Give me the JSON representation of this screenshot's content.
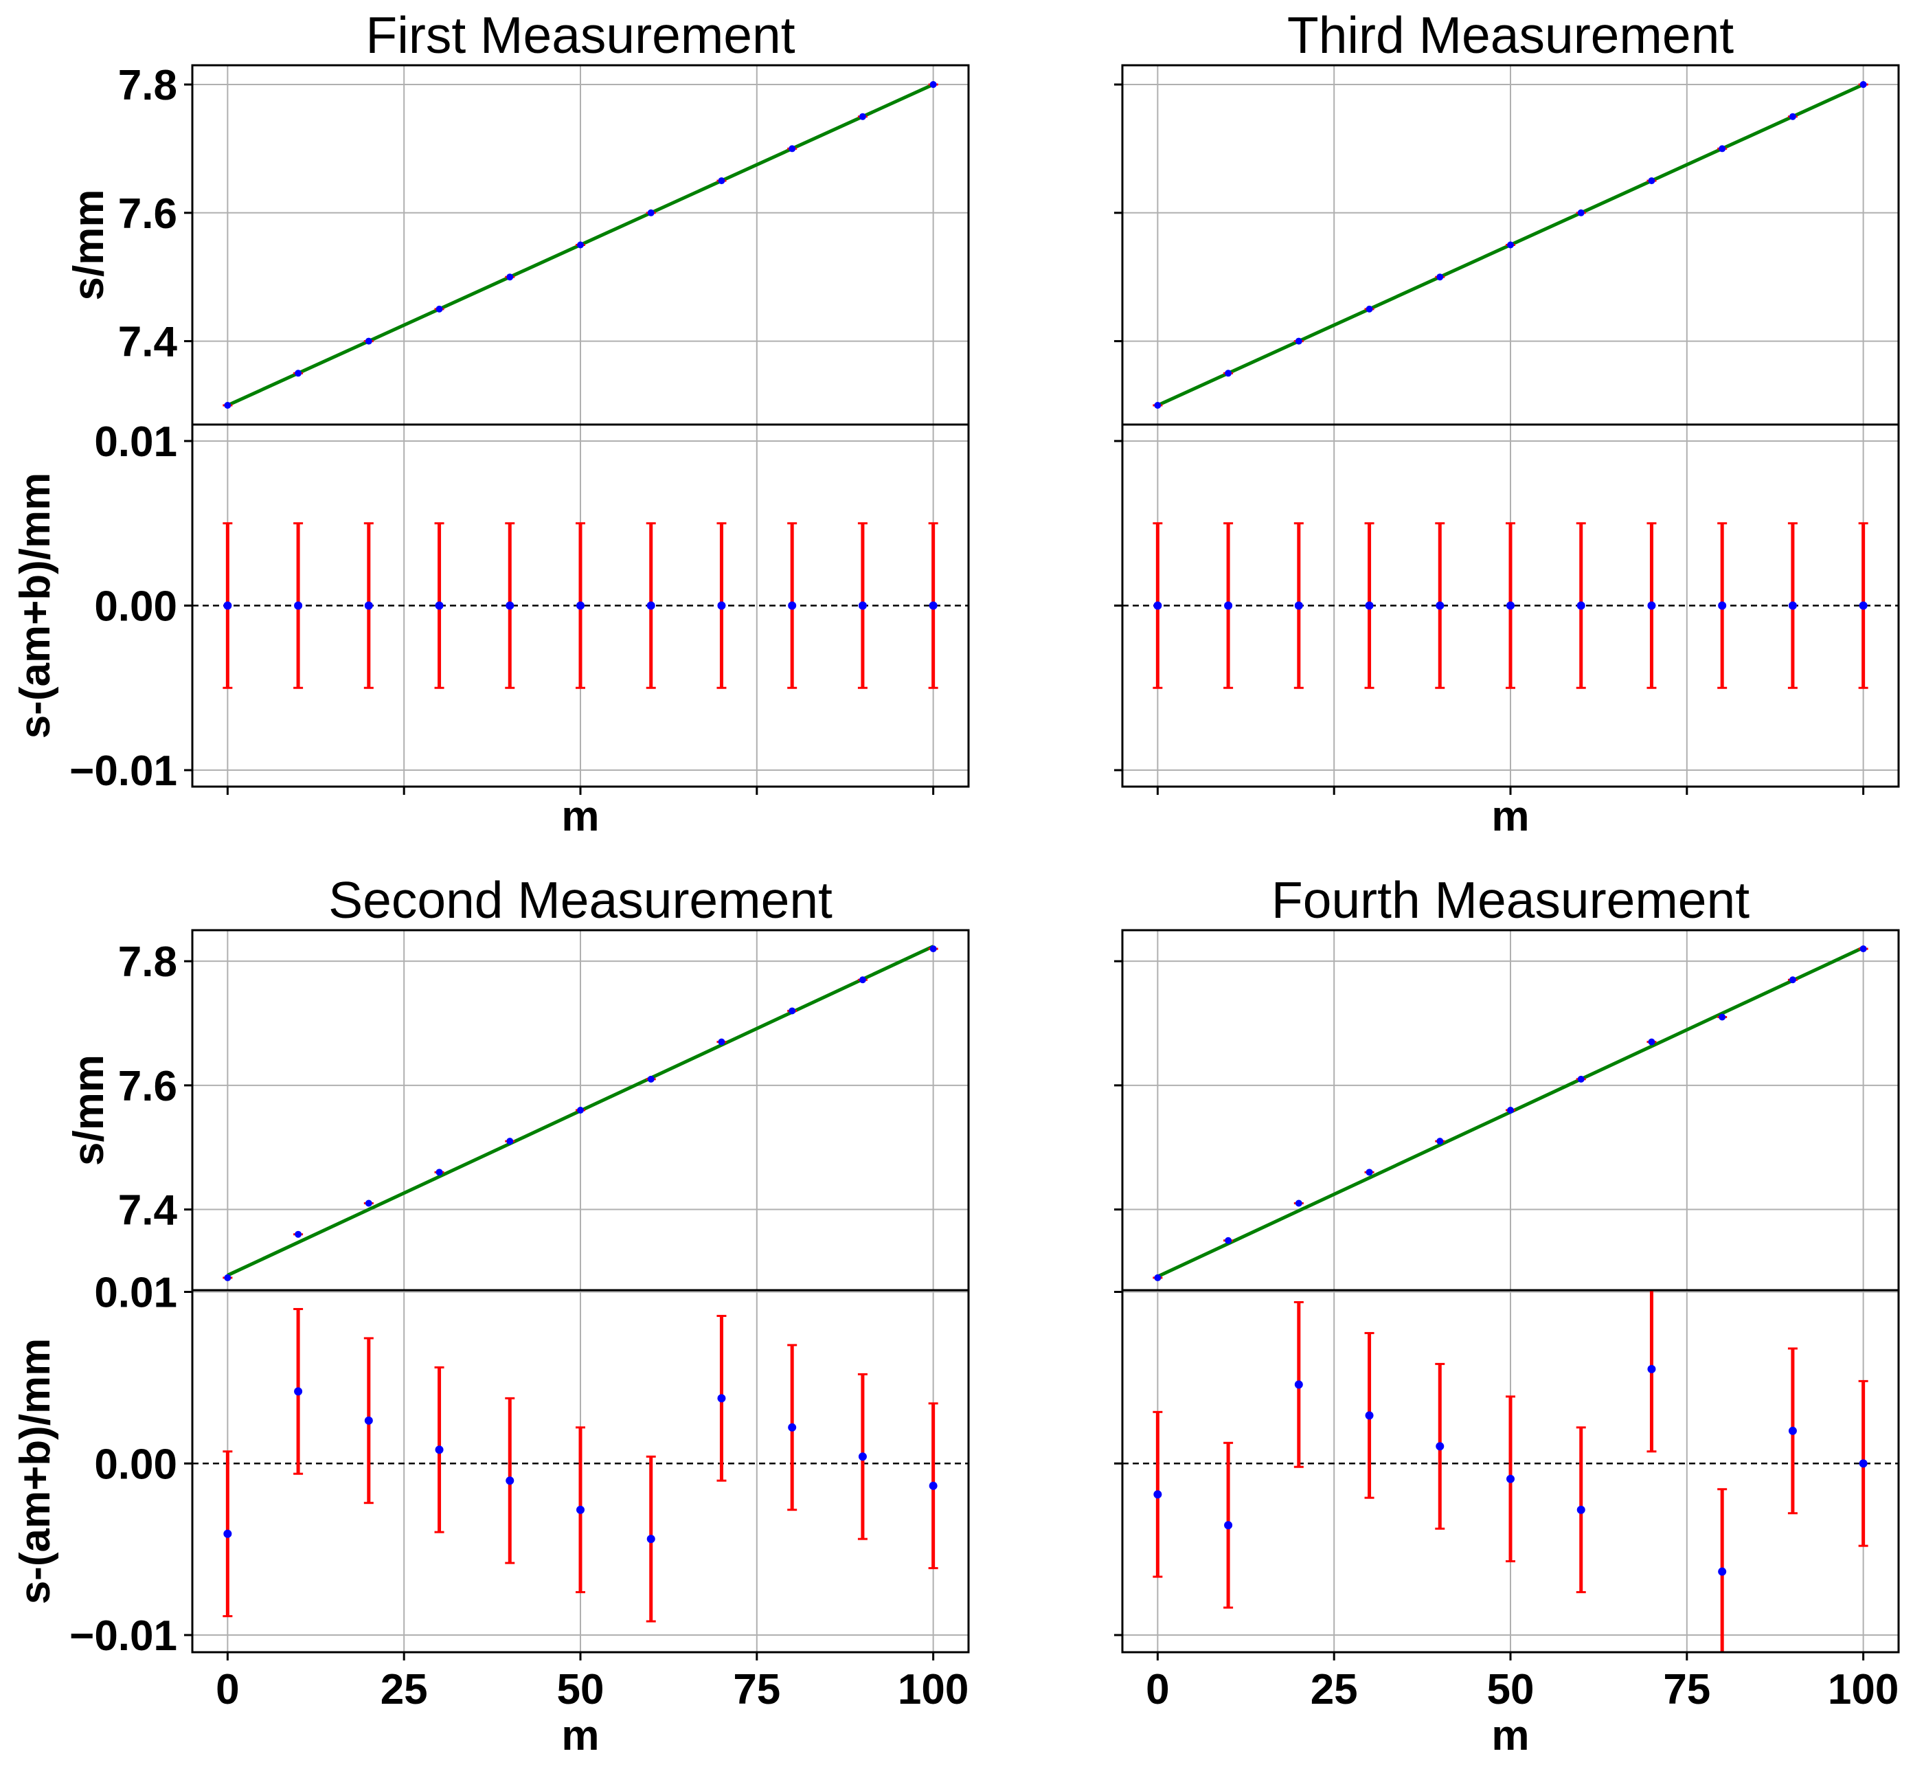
{
  "chart_data": [
    {
      "type": "scatter",
      "title": "First Measurement",
      "xlabel": "m",
      "xlim": [
        -5,
        105
      ],
      "xticks": [
        0,
        25,
        50,
        75,
        100
      ],
      "x": [
        0,
        10,
        20,
        30,
        40,
        50,
        60,
        70,
        80,
        90,
        100
      ],
      "top": {
        "ylabel": "s/mm",
        "ylim": [
          7.27,
          7.83
        ],
        "yticks": [
          "7.4",
          "7.6",
          "7.8"
        ],
        "ytick_values": [
          7.4,
          7.6,
          7.8
        ],
        "y": [
          7.3,
          7.35,
          7.4,
          7.45,
          7.5,
          7.55,
          7.6,
          7.65,
          7.7,
          7.75,
          7.8
        ],
        "fit": {
          "slope": 0.005,
          "intercept": 7.3
        }
      },
      "bottom": {
        "ylabel": "s-(am+b)/mm",
        "ylim": [
          -0.011,
          0.011
        ],
        "yticks": [
          "−0.01",
          "0.00",
          "0.01"
        ],
        "ytick_values": [
          -0.01,
          0.0,
          0.01
        ],
        "residuals": [
          0,
          0,
          0,
          0,
          0,
          0,
          0,
          0,
          0,
          0,
          0
        ],
        "error": 0.005
      },
      "grid": true
    },
    {
      "type": "scatter",
      "title": "Third Measurement",
      "xlabel": "m",
      "xlim": [
        -5,
        105
      ],
      "xticks": [
        0,
        25,
        50,
        75,
        100
      ],
      "x": [
        0,
        10,
        20,
        30,
        40,
        50,
        60,
        70,
        80,
        90,
        100
      ],
      "top": {
        "ylabel": "",
        "ylim": [
          7.27,
          7.83
        ],
        "yticks": [],
        "ytick_values": [
          7.4,
          7.6,
          7.8
        ],
        "y": [
          7.3,
          7.35,
          7.4,
          7.45,
          7.5,
          7.55,
          7.6,
          7.65,
          7.7,
          7.75,
          7.8
        ],
        "fit": {
          "slope": 0.005,
          "intercept": 7.3
        }
      },
      "bottom": {
        "ylabel": "",
        "ylim": [
          -0.011,
          0.011
        ],
        "yticks": [],
        "ytick_values": [
          -0.01,
          0.0,
          0.01
        ],
        "residuals": [
          0,
          0,
          0,
          0,
          0,
          0,
          0,
          0,
          0,
          0,
          0
        ],
        "error": 0.005
      },
      "grid": true
    },
    {
      "type": "scatter",
      "title": "Second Measurement",
      "xlabel": "m",
      "xlim": [
        -5,
        105
      ],
      "xticks": [
        0,
        25,
        50,
        75,
        100
      ],
      "x": [
        0,
        10,
        20,
        30,
        40,
        50,
        60,
        70,
        80,
        90,
        100
      ],
      "top": {
        "ylabel": "s/mm",
        "ylim": [
          7.27,
          7.85
        ],
        "yticks": [
          "7.4",
          "7.6",
          "7.8"
        ],
        "ytick_values": [
          7.4,
          7.6,
          7.8
        ],
        "y": [
          7.29,
          7.36,
          7.41,
          7.46,
          7.51,
          7.56,
          7.61,
          7.67,
          7.72,
          7.77,
          7.82
        ],
        "fit": {
          "slope": 0.0053,
          "intercept": 7.294
        }
      },
      "bottom": {
        "ylabel": "s-(am+b)/mm",
        "ylim": [
          -0.011,
          0.0101
        ],
        "yticks": [
          "−0.01",
          "0.00",
          "0.01"
        ],
        "ytick_values": [
          -0.01,
          0.0,
          0.01
        ],
        "residuals": [
          -0.0041,
          0.0042,
          0.0025,
          0.0008,
          -0.001,
          -0.0027,
          -0.0044,
          0.0038,
          0.0021,
          0.0004,
          -0.0013
        ],
        "error": 0.0048
      },
      "grid": true
    },
    {
      "type": "scatter",
      "title": "Fourth Measurement",
      "xlabel": "m",
      "xlim": [
        -5,
        105
      ],
      "xticks": [
        0,
        25,
        50,
        75,
        100
      ],
      "x": [
        0,
        10,
        20,
        30,
        40,
        50,
        60,
        70,
        80,
        90,
        100
      ],
      "top": {
        "ylabel": "",
        "ylim": [
          7.27,
          7.85
        ],
        "yticks": [],
        "ytick_values": [
          7.4,
          7.6,
          7.8
        ],
        "y": [
          7.29,
          7.35,
          7.41,
          7.46,
          7.51,
          7.56,
          7.61,
          7.67,
          7.71,
          7.77,
          7.82
        ],
        "fit": {
          "slope": 0.0053,
          "intercept": 7.292
        }
      },
      "bottom": {
        "ylabel": "",
        "ylim": [
          -0.011,
          0.0101
        ],
        "yticks": [],
        "ytick_values": [
          -0.01,
          0.0,
          0.01
        ],
        "residuals": [
          -0.0018,
          -0.0036,
          0.0046,
          0.0028,
          0.001,
          -0.0009,
          -0.0027,
          0.0055,
          -0.0063,
          0.0019,
          0.0
        ],
        "error": 0.0048
      },
      "grid": true
    }
  ]
}
